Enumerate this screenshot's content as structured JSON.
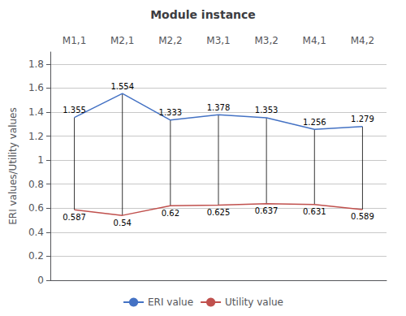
{
  "chart_data": {
    "type": "line",
    "title": "Module instance",
    "ylabel": "ERI values/Utility values",
    "categories": [
      "M1,1",
      "M2,1",
      "M2,2",
      "M3,1",
      "M3,2",
      "M4,1",
      "M4,2"
    ],
    "series": [
      {
        "name": "ERI value",
        "color": "#4472C4",
        "values": [
          1.355,
          1.554,
          1.333,
          1.378,
          1.353,
          1.256,
          1.279
        ]
      },
      {
        "name": "Utility value",
        "color": "#C0504D",
        "values": [
          0.587,
          0.54,
          0.62,
          0.625,
          0.637,
          0.631,
          0.589
        ]
      }
    ],
    "ylim": [
      0,
      1.9
    ],
    "yticks": [
      0,
      0.2,
      0.4,
      0.6,
      0.8,
      1,
      1.2,
      1.4,
      1.6,
      1.8
    ],
    "grid": true,
    "data_labels": true,
    "legend": "bottom"
  }
}
